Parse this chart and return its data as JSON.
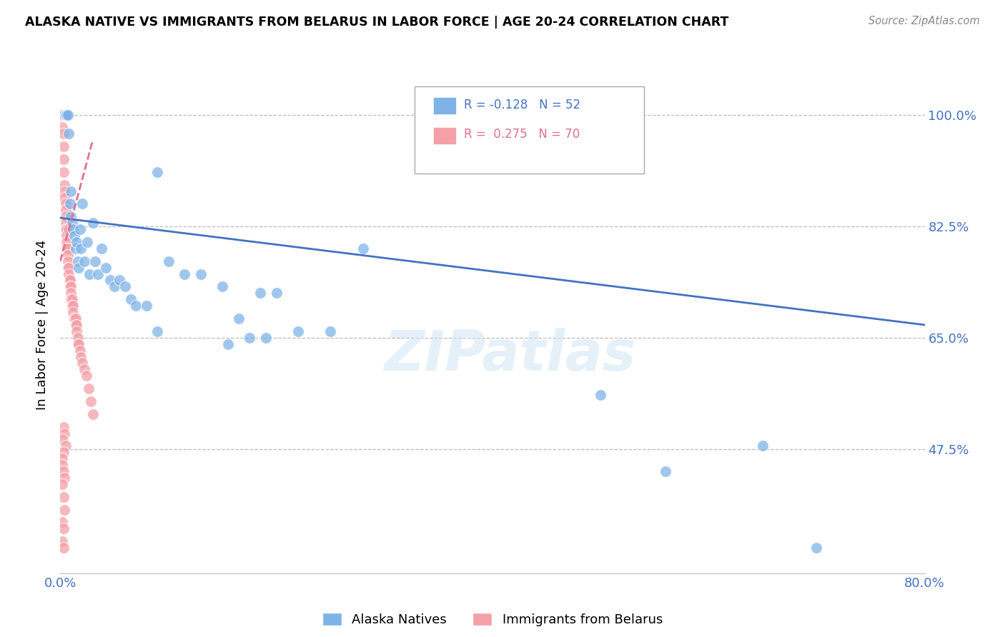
{
  "title": "ALASKA NATIVE VS IMMIGRANTS FROM BELARUS IN LABOR FORCE | AGE 20-24 CORRELATION CHART",
  "source": "Source: ZipAtlas.com",
  "ylabel": "In Labor Force | Age 20-24",
  "xlim": [
    0.0,
    0.8
  ],
  "ylim": [
    0.28,
    1.06
  ],
  "yticks": [
    0.475,
    0.65,
    0.825,
    1.0
  ],
  "ytick_labels": [
    "47.5%",
    "65.0%",
    "82.5%",
    "100.0%"
  ],
  "xticks": [
    0.0,
    0.1,
    0.2,
    0.3,
    0.4,
    0.5,
    0.6,
    0.7,
    0.8
  ],
  "xtick_labels": [
    "0.0%",
    "",
    "",
    "",
    "",
    "",
    "",
    "",
    "80.0%"
  ],
  "legend_r1": "R = -0.128",
  "legend_n1": "N = 52",
  "legend_r2": "R =  0.275",
  "legend_n2": "N = 70",
  "blue_color": "#7FB3E8",
  "pink_color": "#F4A0A8",
  "trend_blue": "#4472C4",
  "trend_pink": "#E07090",
  "watermark": "ZIPatlas",
  "alaska_x": [
    0.004,
    0.005,
    0.006,
    0.007,
    0.008,
    0.009,
    0.01,
    0.01,
    0.011,
    0.012,
    0.013,
    0.014,
    0.015,
    0.016,
    0.017,
    0.018,
    0.019,
    0.02,
    0.022,
    0.025,
    0.027,
    0.03,
    0.032,
    0.035,
    0.038,
    0.042,
    0.046,
    0.05,
    0.055,
    0.06,
    0.065,
    0.07,
    0.08,
    0.09,
    0.1,
    0.115,
    0.13,
    0.15,
    0.165,
    0.185,
    0.2,
    0.22,
    0.25,
    0.28,
    0.155,
    0.175,
    0.19,
    0.09,
    0.5,
    0.56,
    0.65,
    0.7
  ],
  "alaska_y": [
    1.0,
    1.0,
    1.0,
    1.0,
    0.97,
    0.86,
    0.84,
    0.88,
    0.83,
    0.82,
    0.81,
    0.79,
    0.8,
    0.77,
    0.76,
    0.82,
    0.79,
    0.86,
    0.77,
    0.8,
    0.75,
    0.83,
    0.77,
    0.75,
    0.79,
    0.76,
    0.74,
    0.73,
    0.74,
    0.73,
    0.71,
    0.7,
    0.7,
    0.91,
    0.77,
    0.75,
    0.75,
    0.73,
    0.68,
    0.72,
    0.72,
    0.66,
    0.66,
    0.79,
    0.64,
    0.65,
    0.65,
    0.66,
    0.56,
    0.44,
    0.48,
    0.32
  ],
  "belarus_x": [
    0.001,
    0.001,
    0.002,
    0.002,
    0.002,
    0.003,
    0.003,
    0.003,
    0.003,
    0.004,
    0.004,
    0.004,
    0.005,
    0.005,
    0.005,
    0.005,
    0.005,
    0.006,
    0.006,
    0.006,
    0.006,
    0.007,
    0.007,
    0.007,
    0.007,
    0.008,
    0.008,
    0.008,
    0.009,
    0.009,
    0.009,
    0.01,
    0.01,
    0.01,
    0.011,
    0.011,
    0.012,
    0.012,
    0.013,
    0.014,
    0.014,
    0.015,
    0.015,
    0.016,
    0.016,
    0.017,
    0.018,
    0.019,
    0.02,
    0.022,
    0.024,
    0.026,
    0.028,
    0.03,
    0.003,
    0.004,
    0.002,
    0.005,
    0.003,
    0.002,
    0.002,
    0.003,
    0.004,
    0.002,
    0.003,
    0.004,
    0.002,
    0.003,
    0.002,
    0.003
  ],
  "belarus_y": [
    1.0,
    1.0,
    1.0,
    1.0,
    0.98,
    0.97,
    0.95,
    0.93,
    0.91,
    0.89,
    0.88,
    0.87,
    0.86,
    0.85,
    0.84,
    0.83,
    0.82,
    0.82,
    0.81,
    0.8,
    0.79,
    0.79,
    0.78,
    0.77,
    0.76,
    0.76,
    0.75,
    0.82,
    0.74,
    0.74,
    0.73,
    0.73,
    0.72,
    0.71,
    0.71,
    0.7,
    0.7,
    0.69,
    0.68,
    0.68,
    0.67,
    0.67,
    0.66,
    0.65,
    0.64,
    0.64,
    0.63,
    0.62,
    0.61,
    0.6,
    0.59,
    0.57,
    0.55,
    0.53,
    0.51,
    0.5,
    0.49,
    0.48,
    0.47,
    0.46,
    0.45,
    0.44,
    0.43,
    0.42,
    0.4,
    0.38,
    0.36,
    0.35,
    0.33,
    0.32
  ],
  "blue_trendline_x": [
    0.0,
    0.8
  ],
  "blue_trendline_y": [
    0.838,
    0.67
  ],
  "pink_trendline_x": [
    0.0,
    0.03
  ],
  "pink_trendline_y": [
    0.77,
    0.96
  ]
}
